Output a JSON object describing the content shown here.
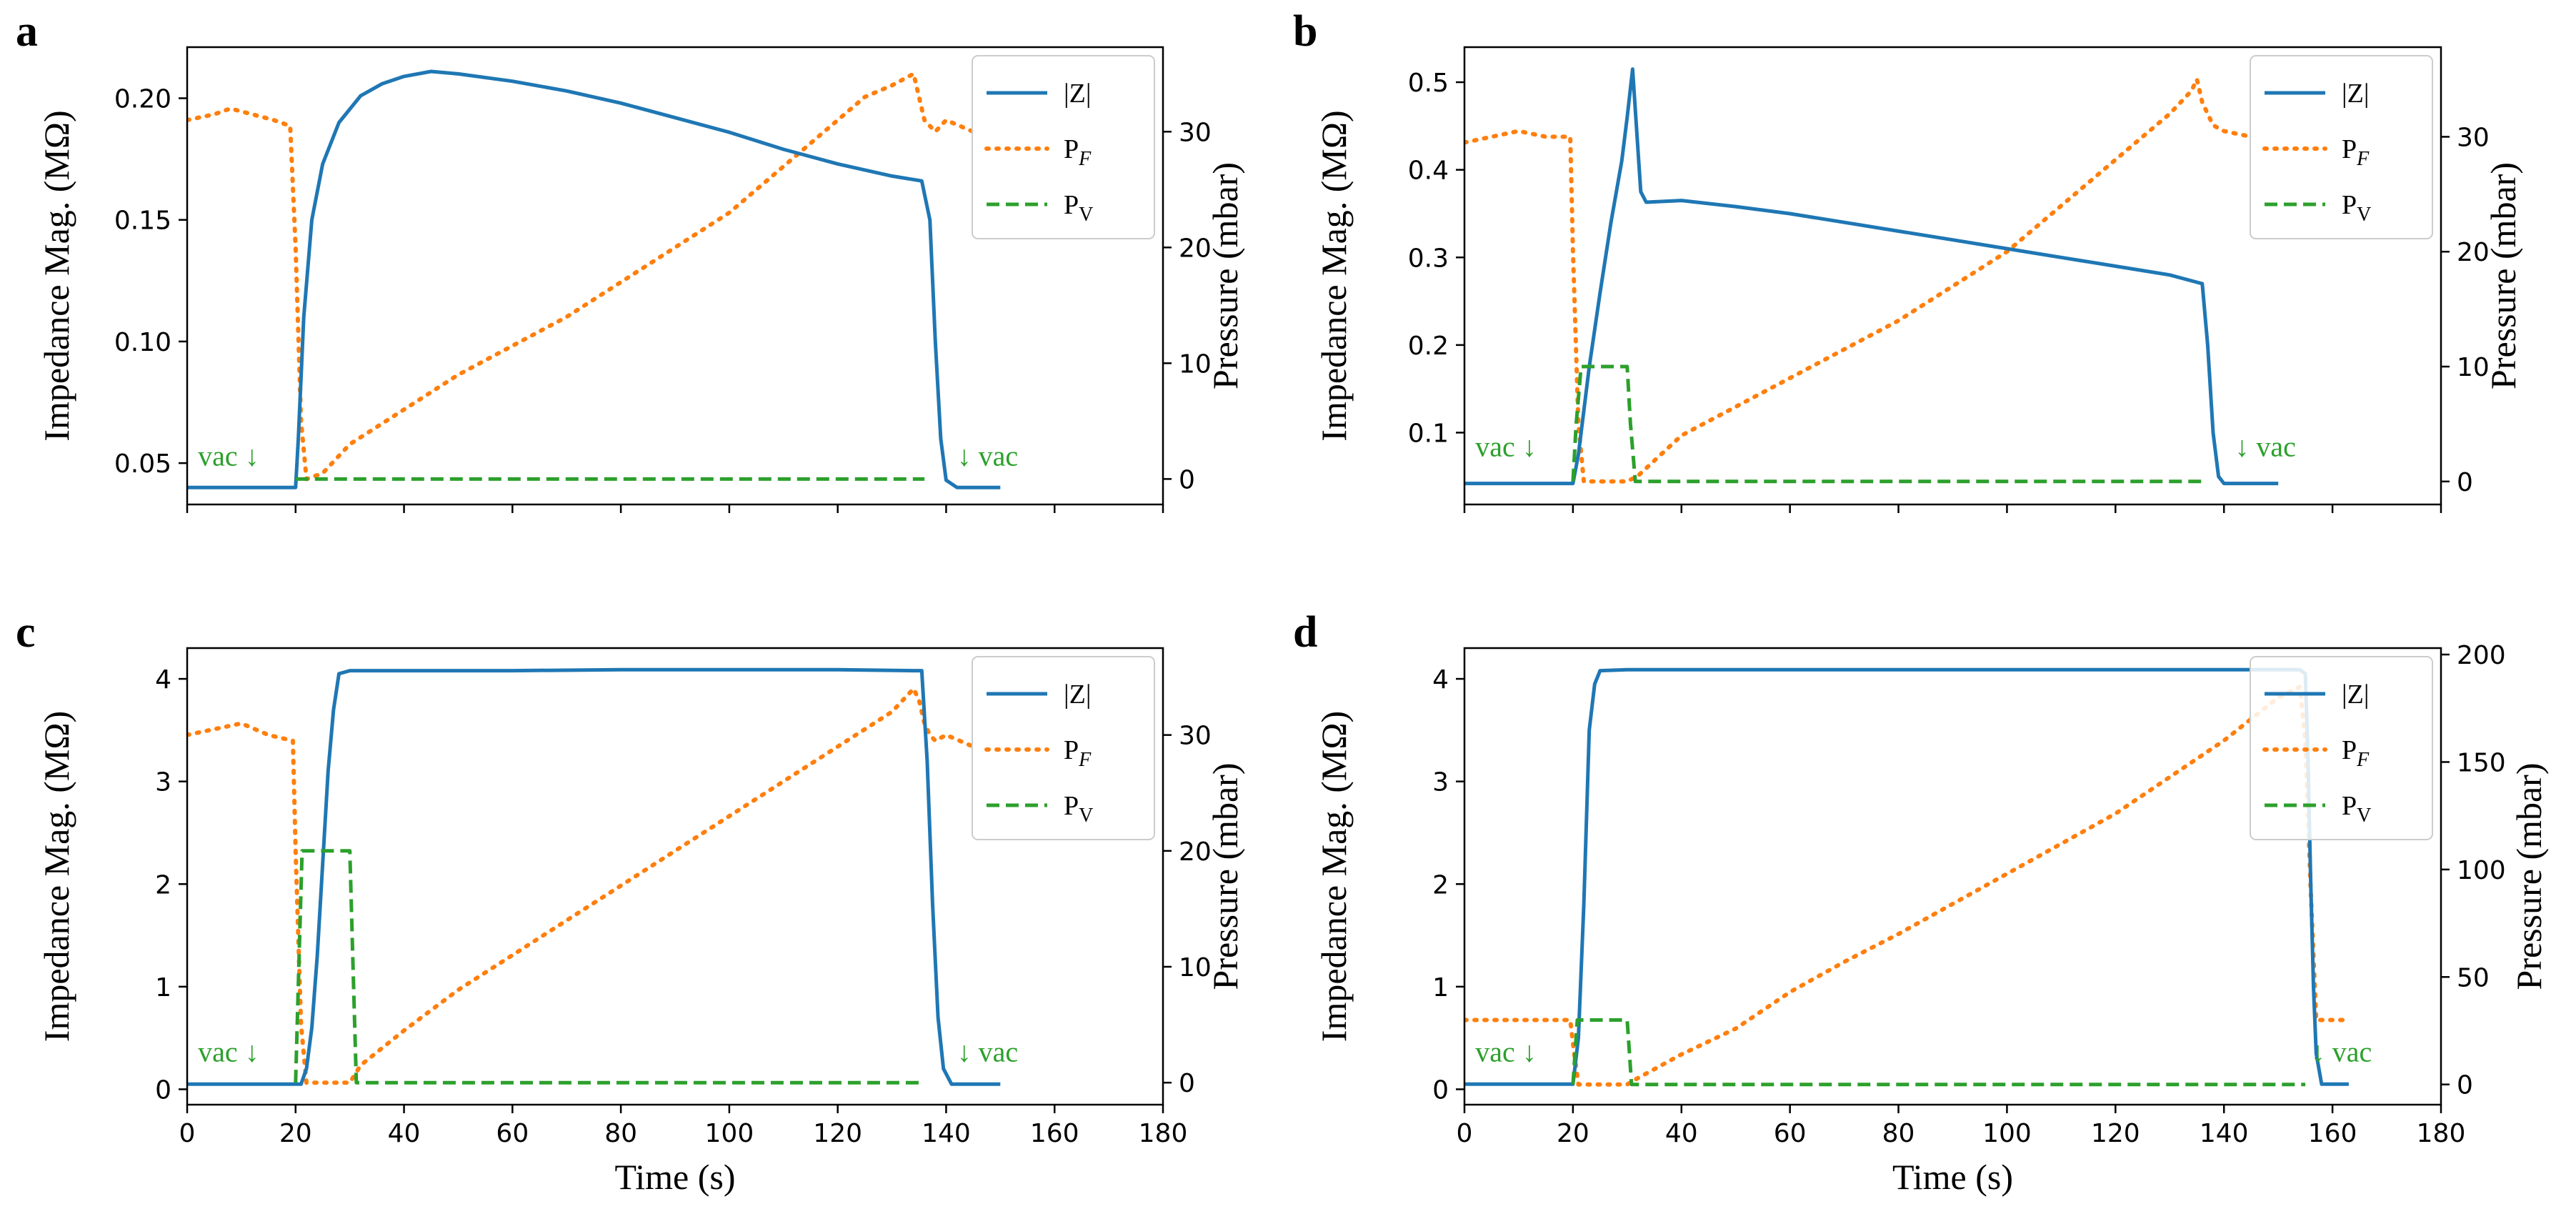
{
  "colors": {
    "Z": "#1f77b4",
    "PF": "#ff7f0e",
    "PV": "#2ca02c"
  },
  "legend": [
    {
      "key": "Z",
      "label": "|Z|",
      "style": "solid"
    },
    {
      "key": "PF",
      "label": "P",
      "sub": "F",
      "style": "dotted"
    },
    {
      "key": "PV",
      "label": "P",
      "sub": "V",
      "style": "dashed"
    }
  ],
  "chart_data": [
    {
      "panel": "a",
      "type": "line",
      "xlabel": "",
      "ylabel": "Impedance Mag. (MΩ)",
      "y2label": "Pressure (mbar)",
      "xlim": [
        0,
        180
      ],
      "ylim": [
        0.033,
        0.221
      ],
      "y2lim": [
        -2.2,
        37.3
      ],
      "xticks": [
        0,
        20,
        40,
        60,
        80,
        100,
        120,
        140,
        160,
        180
      ],
      "show_xtick_labels": false,
      "yticks": [
        0.05,
        0.1,
        0.15,
        0.2
      ],
      "ytick_labels": [
        "0.05",
        "0.10",
        "0.15",
        "0.20"
      ],
      "y2ticks": [
        0,
        10,
        20,
        30
      ],
      "y2tick_labels": [
        "0",
        "10",
        "20",
        "30"
      ],
      "legend_position": "top-right",
      "annotations": [
        {
          "text": "vac ↓",
          "x": 2,
          "y": 0.049,
          "align": "start"
        },
        {
          "text": "↓ vac",
          "x": 142,
          "y": 0.049,
          "align": "start"
        }
      ],
      "series": [
        {
          "name": "|Z|",
          "key": "Z",
          "axis": "left",
          "x": [
            0,
            20,
            20.5,
            21.5,
            23,
            25,
            28,
            32,
            36,
            40,
            45,
            50,
            60,
            70,
            80,
            90,
            100,
            110,
            120,
            130,
            135.5,
            137,
            138,
            139,
            140,
            142,
            150
          ],
          "y": [
            0.04,
            0.04,
            0.06,
            0.11,
            0.15,
            0.173,
            0.19,
            0.201,
            0.206,
            0.209,
            0.211,
            0.21,
            0.207,
            0.203,
            0.198,
            0.192,
            0.186,
            0.179,
            0.173,
            0.168,
            0.166,
            0.15,
            0.1,
            0.06,
            0.043,
            0.04,
            0.04
          ]
        },
        {
          "name": "P_F",
          "key": "PF",
          "axis": "right",
          "x": [
            0,
            5,
            8,
            12,
            16,
            19,
            20,
            21,
            22,
            25,
            30,
            40,
            50,
            60,
            70,
            80,
            90,
            100,
            110,
            115,
            120,
            125,
            130,
            132,
            134,
            136,
            138,
            140,
            145
          ],
          "y": [
            31,
            31.5,
            32,
            31.5,
            31,
            30.5,
            20,
            5,
            0,
            0.5,
            3,
            6,
            9,
            11.5,
            14,
            17,
            20,
            23,
            27,
            29,
            31,
            33,
            34,
            34.5,
            35,
            31,
            30,
            31,
            30
          ]
        },
        {
          "name": "P_V",
          "key": "PV",
          "axis": "right",
          "x": [
            20,
            136
          ],
          "y": [
            0,
            0
          ]
        }
      ]
    },
    {
      "panel": "b",
      "type": "line",
      "xlabel": "",
      "ylabel": "Impedance Mag. (MΩ)",
      "y2label": "Pressure (mbar)",
      "xlim": [
        0,
        180
      ],
      "ylim": [
        0.018,
        0.54
      ],
      "y2lim": [
        -2.0,
        37.8
      ],
      "xticks": [
        0,
        20,
        40,
        60,
        80,
        100,
        120,
        140,
        160,
        180
      ],
      "show_xtick_labels": false,
      "yticks": [
        0.1,
        0.2,
        0.3,
        0.4,
        0.5
      ],
      "ytick_labels": [
        "0.1",
        "0.2",
        "0.3",
        "0.4",
        "0.5"
      ],
      "y2ticks": [
        0,
        10,
        20,
        30
      ],
      "y2tick_labels": [
        "0",
        "10",
        "20",
        "30"
      ],
      "legend_position": "top-right",
      "annotations": [
        {
          "text": "vac ↓",
          "x": 2,
          "y": 0.073,
          "align": "start"
        },
        {
          "text": "↓ vac",
          "x": 142,
          "y": 0.073,
          "align": "start"
        }
      ],
      "series": [
        {
          "name": "|Z|",
          "key": "Z",
          "axis": "left",
          "x": [
            0,
            20,
            21,
            23,
            25,
            27,
            29,
            30,
            31,
            31.8,
            32.5,
            33.5,
            40,
            50,
            60,
            70,
            80,
            90,
            100,
            110,
            120,
            130,
            136,
            137,
            138,
            139,
            140,
            142,
            150
          ],
          "y": [
            0.042,
            0.042,
            0.075,
            0.175,
            0.26,
            0.34,
            0.41,
            0.46,
            0.515,
            0.44,
            0.375,
            0.363,
            0.365,
            0.358,
            0.35,
            0.34,
            0.33,
            0.32,
            0.31,
            0.3,
            0.29,
            0.28,
            0.27,
            0.2,
            0.1,
            0.05,
            0.042,
            0.042,
            0.042
          ]
        },
        {
          "name": "P_F",
          "key": "PF",
          "axis": "right",
          "x": [
            0,
            5,
            10,
            15,
            19.5,
            20,
            21,
            22,
            30,
            32,
            40,
            50,
            60,
            70,
            80,
            90,
            100,
            110,
            115,
            120,
            125,
            130,
            134,
            135,
            136,
            138,
            140,
            145
          ],
          "y": [
            29.5,
            30,
            30.5,
            30,
            30,
            20,
            5,
            0,
            0,
            0.5,
            4,
            6.5,
            9,
            11.5,
            14,
            17,
            20,
            24,
            26,
            28,
            30,
            32,
            34,
            35,
            33,
            31,
            30.5,
            30
          ]
        },
        {
          "name": "P_V",
          "key": "PV",
          "axis": "right",
          "x": [
            20,
            20.6,
            21.5,
            30,
            30.6,
            31.5,
            136
          ],
          "y": [
            0,
            5,
            10,
            10,
            5,
            0,
            0
          ]
        }
      ]
    },
    {
      "panel": "c",
      "type": "line",
      "xlabel": "Time (s)",
      "ylabel": "Impedance Mag. (MΩ)",
      "y2label": "Pressure (mbar)",
      "xlim": [
        0,
        180
      ],
      "ylim": [
        -0.15,
        4.3
      ],
      "y2lim": [
        -1.9,
        37.5
      ],
      "xticks": [
        0,
        20,
        40,
        60,
        80,
        100,
        120,
        140,
        160,
        180
      ],
      "show_xtick_labels": true,
      "yticks": [
        0,
        1,
        2,
        3,
        4
      ],
      "ytick_labels": [
        "0",
        "1",
        "2",
        "3",
        "4"
      ],
      "y2ticks": [
        0,
        10,
        20,
        30
      ],
      "y2tick_labels": [
        "0",
        "10",
        "20",
        "30"
      ],
      "legend_position": "top-right",
      "annotations": [
        {
          "text": "vac ↓",
          "x": 2,
          "y": 0.27,
          "align": "start"
        },
        {
          "text": "↓ vac",
          "x": 142,
          "y": 0.27,
          "align": "start"
        }
      ],
      "series": [
        {
          "name": "|Z|",
          "key": "Z",
          "axis": "left",
          "x": [
            0,
            21,
            22,
            23,
            24,
            25,
            26,
            27,
            28,
            30,
            40,
            60,
            80,
            100,
            120,
            134,
            135.5,
            136.5,
            137.5,
            138.5,
            139.5,
            141,
            150
          ],
          "y": [
            0.05,
            0.05,
            0.2,
            0.6,
            1.3,
            2.2,
            3.1,
            3.7,
            4.05,
            4.08,
            4.08,
            4.08,
            4.09,
            4.09,
            4.09,
            4.08,
            4.08,
            3.2,
            1.8,
            0.7,
            0.2,
            0.05,
            0.05
          ]
        },
        {
          "name": "P_F",
          "key": "PF",
          "axis": "right",
          "x": [
            0,
            5,
            10,
            15,
            19.5,
            20,
            21,
            22,
            30,
            32,
            40,
            50,
            60,
            70,
            80,
            90,
            100,
            110,
            120,
            130,
            134,
            135,
            136,
            137,
            138,
            140,
            145
          ],
          "y": [
            30,
            30.5,
            31,
            30,
            29.5,
            20,
            5,
            0,
            0,
            1.5,
            4.5,
            8,
            11,
            14,
            17,
            20,
            23,
            26,
            29,
            32,
            34,
            33,
            31,
            30,
            29.5,
            30,
            29
          ]
        },
        {
          "name": "P_V",
          "key": "PV",
          "axis": "right",
          "x": [
            20,
            20.6,
            21.2,
            30,
            30.6,
            31.2,
            136
          ],
          "y": [
            0,
            10,
            20,
            20,
            10,
            0,
            0
          ]
        }
      ]
    },
    {
      "panel": "d",
      "type": "line",
      "xlabel": "Time (s)",
      "ylabel": "Impedance Mag. (MΩ)",
      "y2label": "Pressure (mbar)",
      "xlim": [
        0,
        180
      ],
      "ylim": [
        -0.15,
        4.3
      ],
      "y2lim": [
        -9.4,
        203
      ],
      "xticks": [
        0,
        20,
        40,
        60,
        80,
        100,
        120,
        140,
        160,
        180
      ],
      "show_xtick_labels": true,
      "yticks": [
        0,
        1,
        2,
        3,
        4
      ],
      "ytick_labels": [
        "0",
        "1",
        "2",
        "3",
        "4"
      ],
      "y2ticks": [
        0,
        50,
        100,
        150,
        200
      ],
      "y2tick_labels": [
        "0",
        "50",
        "100",
        "150",
        "200"
      ],
      "legend_position": "top-right",
      "annotations": [
        {
          "text": "vac ↓",
          "x": 2,
          "y": 0.27,
          "align": "start"
        },
        {
          "text": "↓ vac",
          "x": 156,
          "y": 0.27,
          "align": "start"
        }
      ],
      "series": [
        {
          "name": "|Z|",
          "key": "Z",
          "axis": "left",
          "x": [
            0,
            20,
            21,
            22,
            23,
            24,
            25,
            30,
            40,
            60,
            80,
            100,
            120,
            140,
            154,
            155,
            155.5,
            156,
            156.5,
            157,
            158,
            163
          ],
          "y": [
            0.05,
            0.05,
            0.5,
            1.8,
            3.5,
            3.95,
            4.08,
            4.09,
            4.09,
            4.09,
            4.09,
            4.09,
            4.09,
            4.09,
            4.09,
            4.05,
            3.2,
            2.0,
            1.0,
            0.35,
            0.05,
            0.05
          ]
        },
        {
          "name": "P_F",
          "key": "PF",
          "axis": "right",
          "x": [
            0,
            10,
            19.5,
            20.2,
            21,
            22,
            30,
            32,
            40,
            50,
            60,
            70,
            80,
            90,
            100,
            110,
            120,
            130,
            140,
            145,
            150,
            154,
            155,
            156,
            157,
            160,
            163
          ],
          "y": [
            30,
            30,
            30,
            15,
            0,
            0,
            0,
            3,
            14,
            26,
            43,
            57,
            70,
            84,
            98,
            112,
            126,
            143,
            160,
            170,
            180,
            185,
            160,
            90,
            30,
            30,
            30
          ]
        },
        {
          "name": "P_V",
          "key": "PV",
          "axis": "right",
          "x": [
            20,
            20.4,
            20.8,
            30,
            30.4,
            30.8,
            155
          ],
          "y": [
            0,
            15,
            30,
            30,
            15,
            0,
            0
          ]
        }
      ]
    }
  ]
}
